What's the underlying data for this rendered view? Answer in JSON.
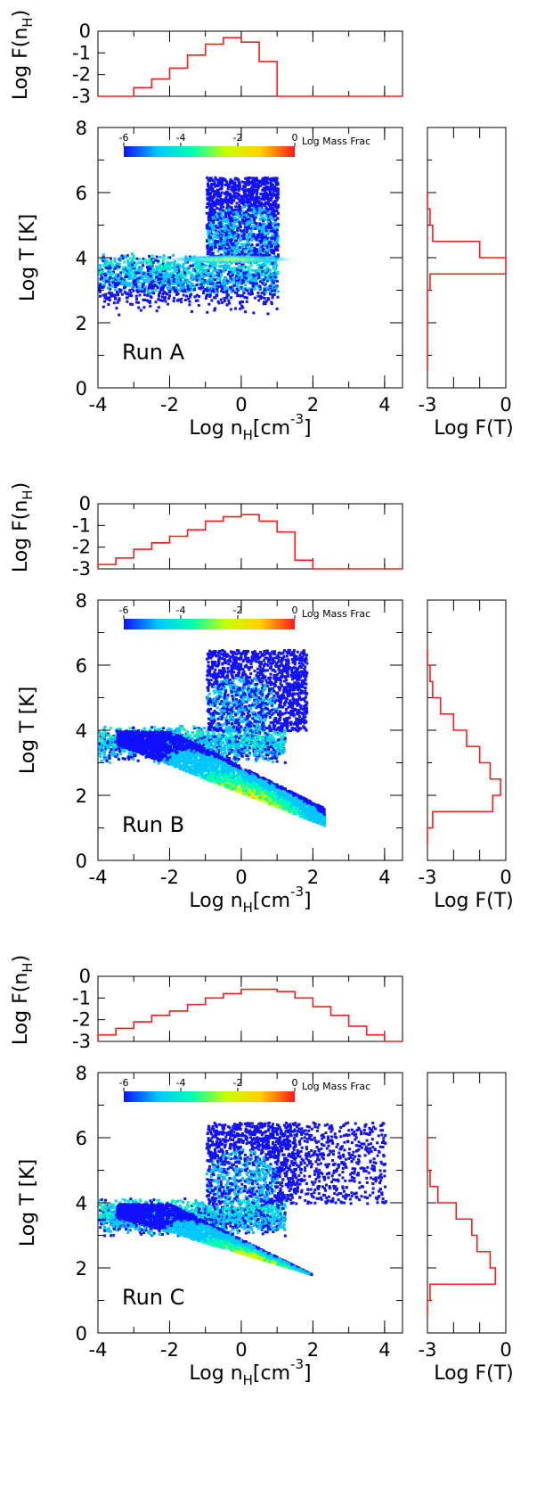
{
  "chart_data": [
    {
      "type": "heatmap",
      "run_label": "Run A",
      "xlabel_main": "Log n",
      "xlabel_sub": "H",
      "xlabel_unit": "[cm",
      "xlabel_exp": "-3",
      "xlabel_close": "]",
      "ylabel": "Log T [K]",
      "xlim": [
        -4,
        4.5
      ],
      "ylim": [
        0,
        8
      ],
      "xticks": [
        "-4",
        "-2",
        "0",
        "2",
        "4"
      ],
      "yticks": [
        "0",
        "2",
        "4",
        "6",
        "8"
      ],
      "colorbar": {
        "label": "Log Mass Frac",
        "ticks": [
          "-6",
          "-4",
          "-2",
          "0"
        ],
        "range": [
          -6,
          0
        ],
        "colors": [
          "#1010ff",
          "#00c8ff",
          "#00ffb0",
          "#c8ff00",
          "#ffd000",
          "#ff1a1a"
        ]
      },
      "density": {
        "hist_nH": {
          "ylabel_main": "Log F(n",
          "ylabel_sub": "H",
          "ylabel_close": ")",
          "yticks": [
            "0",
            "-1",
            "-2",
            "-3"
          ],
          "ylim": [
            -3,
            0
          ],
          "bin_edges": [
            -3.0,
            -2.5,
            -2.0,
            -1.5,
            -1.0,
            -0.5,
            0.0,
            0.5,
            1.0
          ],
          "values": [
            -2.6,
            -2.2,
            -1.7,
            -1.1,
            -0.6,
            -0.3,
            -0.5,
            -1.4
          ]
        },
        "hist_T": {
          "xlabel": "Log F(T)",
          "xticks": [
            "-3",
            "0"
          ],
          "xlim": [
            -3,
            0
          ],
          "bin_edges": [
            5.0,
            5.5,
            6.0
          ],
          "T_bins": [
            {
              "lo": 0.5,
              "hi": 3.0,
              "v": -3.0
            },
            {
              "lo": 3.0,
              "hi": 3.5,
              "v": -2.9
            },
            {
              "lo": 3.5,
              "hi": 4.0,
              "v": 0.0
            },
            {
              "lo": 4.0,
              "hi": 4.5,
              "v": -1.0
            },
            {
              "lo": 4.5,
              "hi": 5.0,
              "v": -2.8
            },
            {
              "lo": 5.0,
              "hi": 5.5,
              "v": -2.9
            },
            {
              "lo": 5.5,
              "hi": 6.0,
              "v": -3.0
            }
          ]
        }
      }
    },
    {
      "type": "heatmap",
      "run_label": "Run B",
      "xlabel_main": "Log n",
      "xlabel_sub": "H",
      "xlabel_unit": "[cm",
      "xlabel_exp": "-3",
      "xlabel_close": "]",
      "ylabel": "Log T [K]",
      "xlim": [
        -4,
        4.5
      ],
      "ylim": [
        0,
        8
      ],
      "xticks": [
        "-4",
        "-2",
        "0",
        "2",
        "4"
      ],
      "yticks": [
        "0",
        "2",
        "4",
        "6",
        "8"
      ],
      "colorbar": {
        "label": "Log Mass Frac",
        "ticks": [
          "-6",
          "-4",
          "-2",
          "0"
        ],
        "range": [
          -6,
          0
        ],
        "colors": [
          "#1010ff",
          "#00c8ff",
          "#00ffb0",
          "#c8ff00",
          "#ffd000",
          "#ff1a1a"
        ]
      },
      "density": {
        "hist_nH": {
          "ylabel_main": "Log F(n",
          "ylabel_sub": "H",
          "ylabel_close": ")",
          "yticks": [
            "0",
            "-1",
            "-2",
            "-3"
          ],
          "ylim": [
            -3,
            0
          ],
          "bin_edges": [
            -4.0,
            -3.5,
            -3.0,
            -2.5,
            -2.0,
            -1.5,
            -1.0,
            -0.5,
            0.0,
            0.5,
            1.0,
            1.5,
            2.0
          ],
          "values": [
            -2.8,
            -2.5,
            -2.1,
            -1.8,
            -1.5,
            -1.2,
            -0.8,
            -0.6,
            -0.5,
            -0.8,
            -1.3,
            -2.6
          ]
        },
        "hist_T": {
          "xlabel": "Log F(T)",
          "xticks": [
            "-3",
            "0"
          ],
          "xlim": [
            -3,
            0
          ],
          "T_bins": [
            {
              "lo": 0.5,
              "hi": 1.0,
              "v": -3.0
            },
            {
              "lo": 1.0,
              "hi": 1.5,
              "v": -2.8
            },
            {
              "lo": 1.5,
              "hi": 2.0,
              "v": -0.5
            },
            {
              "lo": 2.0,
              "hi": 2.5,
              "v": -0.2
            },
            {
              "lo": 2.5,
              "hi": 3.0,
              "v": -0.6
            },
            {
              "lo": 3.0,
              "hi": 3.5,
              "v": -1.0
            },
            {
              "lo": 3.5,
              "hi": 4.0,
              "v": -1.5
            },
            {
              "lo": 4.0,
              "hi": 4.5,
              "v": -2.0
            },
            {
              "lo": 4.5,
              "hi": 5.0,
              "v": -2.5
            },
            {
              "lo": 5.0,
              "hi": 5.5,
              "v": -2.8
            },
            {
              "lo": 5.5,
              "hi": 6.0,
              "v": -2.9
            },
            {
              "lo": 6.0,
              "hi": 6.5,
              "v": -3.0
            }
          ]
        }
      }
    },
    {
      "type": "heatmap",
      "run_label": "Run C",
      "xlabel_main": "Log n",
      "xlabel_sub": "H",
      "xlabel_unit": "[cm",
      "xlabel_exp": "-3",
      "xlabel_close": "]",
      "ylabel": "Log T [K]",
      "xlim": [
        -4,
        4.5
      ],
      "ylim": [
        0,
        8
      ],
      "xticks": [
        "-4",
        "-2",
        "0",
        "2",
        "4"
      ],
      "yticks": [
        "0",
        "2",
        "4",
        "6",
        "8"
      ],
      "colorbar": {
        "label": "Log Mass Frac",
        "ticks": [
          "-6",
          "-4",
          "-2",
          "0"
        ],
        "range": [
          -6,
          0
        ],
        "colors": [
          "#1010ff",
          "#00c8ff",
          "#00ffb0",
          "#c8ff00",
          "#ffd000",
          "#ff1a1a"
        ]
      },
      "density": {
        "hist_nH": {
          "ylabel_main": "Log F(n",
          "ylabel_sub": "H",
          "ylabel_close": ")",
          "yticks": [
            "0",
            "-1",
            "-2",
            "-3"
          ],
          "ylim": [
            -3,
            0
          ],
          "bin_edges": [
            -4.0,
            -3.5,
            -3.0,
            -2.5,
            -2.0,
            -1.5,
            -1.0,
            -0.5,
            0.0,
            0.5,
            1.0,
            1.5,
            2.0,
            2.5,
            3.0,
            3.5,
            4.0
          ],
          "values": [
            -2.7,
            -2.4,
            -2.1,
            -1.8,
            -1.6,
            -1.3,
            -1.0,
            -0.8,
            -0.6,
            -0.6,
            -0.7,
            -1.0,
            -1.4,
            -1.8,
            -2.3,
            -2.7
          ]
        },
        "hist_T": {
          "xlabel": "Log F(T)",
          "xticks": [
            "-3",
            "0"
          ],
          "xlim": [
            -3,
            0
          ],
          "T_bins": [
            {
              "lo": 0.5,
              "hi": 1.0,
              "v": -3.0
            },
            {
              "lo": 1.0,
              "hi": 1.5,
              "v": -2.9
            },
            {
              "lo": 1.5,
              "hi": 2.0,
              "v": -0.4
            },
            {
              "lo": 2.0,
              "hi": 2.5,
              "v": -0.6
            },
            {
              "lo": 2.5,
              "hi": 3.0,
              "v": -1.1
            },
            {
              "lo": 3.0,
              "hi": 3.5,
              "v": -1.3
            },
            {
              "lo": 3.5,
              "hi": 4.0,
              "v": -1.9
            },
            {
              "lo": 4.0,
              "hi": 4.5,
              "v": -2.6
            },
            {
              "lo": 4.5,
              "hi": 5.0,
              "v": -2.9
            },
            {
              "lo": 5.0,
              "hi": 5.5,
              "v": -3.0
            },
            {
              "lo": 5.5,
              "hi": 6.0,
              "v": -3.0
            }
          ]
        }
      }
    }
  ]
}
